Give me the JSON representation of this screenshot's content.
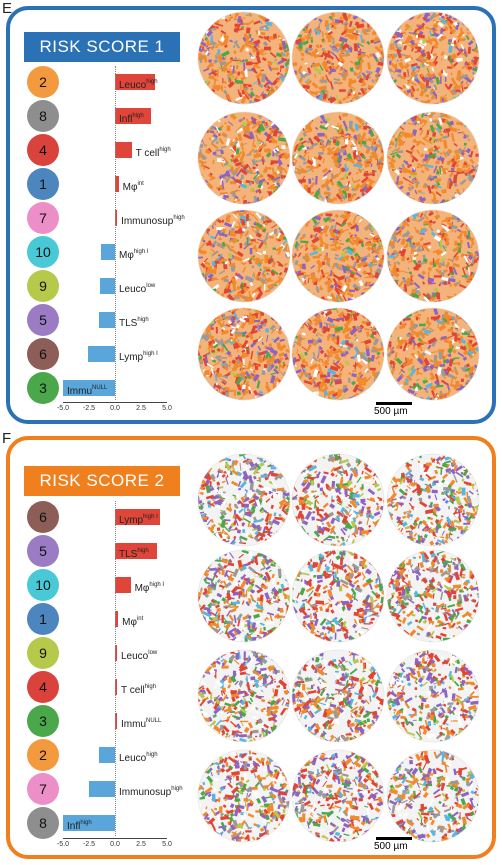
{
  "panels": [
    {
      "letter": "E",
      "title": "RISK SCORE 1",
      "border_color": "#2a72b5",
      "title_bg": "#2a72b5",
      "rows": [
        {
          "num": "2",
          "color": "#f39a3e",
          "value": 3.8,
          "base": "Leuco",
          "sup": "high"
        },
        {
          "num": "8",
          "color": "#8e8e8e",
          "value": 3.5,
          "base": "Infl",
          "sup": "high"
        },
        {
          "num": "4",
          "color": "#d9433b",
          "value": 1.6,
          "base": "T cell",
          "sup": "high"
        },
        {
          "num": "1",
          "color": "#4d85bf",
          "value": 0.35,
          "base": "Mφ",
          "sup": "int"
        },
        {
          "num": "7",
          "color": "#ec8fc9",
          "value": 0.2,
          "base": "Immunosup",
          "sup": "high"
        },
        {
          "num": "10",
          "color": "#49c9d6",
          "value": -1.3,
          "base": "Mφ",
          "sup": "high I"
        },
        {
          "num": "9",
          "color": "#b6c94a",
          "value": -1.4,
          "base": "Leuco",
          "sup": "low"
        },
        {
          "num": "5",
          "color": "#9b7cc4",
          "value": -1.5,
          "base": "TLS",
          "sup": "high"
        },
        {
          "num": "6",
          "color": "#8c5e57",
          "value": -2.6,
          "base": "Lymp",
          "sup": "high I"
        },
        {
          "num": "3",
          "color": "#4aa84a",
          "value": -5.0,
          "base": "Immu",
          "sup": "NULL"
        }
      ],
      "ticks": [
        "-5.0",
        "-2.5",
        "0.0",
        "2.5",
        "5.0"
      ],
      "scale_label": "500 µm"
    },
    {
      "letter": "F",
      "title": "RISK SCORE 2",
      "border_color": "#f07f1e",
      "title_bg": "#f07f1e",
      "rows": [
        {
          "num": "6",
          "color": "#8c5e57",
          "value": 4.3,
          "base": "Lymp",
          "sup": "high I"
        },
        {
          "num": "5",
          "color": "#9b7cc4",
          "value": 4.0,
          "base": "TLS",
          "sup": "high"
        },
        {
          "num": "10",
          "color": "#49c9d6",
          "value": 1.5,
          "base": "Mφ",
          "sup": "high I"
        },
        {
          "num": "1",
          "color": "#4d85bf",
          "value": 0.3,
          "base": "Mφ",
          "sup": "int"
        },
        {
          "num": "9",
          "color": "#b6c94a",
          "value": 0.1,
          "base": "Leuco",
          "sup": "low"
        },
        {
          "num": "4",
          "color": "#d9433b",
          "value": 0.1,
          "base": "T cell",
          "sup": "high"
        },
        {
          "num": "3",
          "color": "#4aa84a",
          "value": 0.05,
          "base": "Immu",
          "sup": "NULL"
        },
        {
          "num": "2",
          "color": "#f39a3e",
          "value": -1.5,
          "base": "Leuco",
          "sup": "high"
        },
        {
          "num": "7",
          "color": "#ec8fc9",
          "value": -2.5,
          "base": "Immunosup",
          "sup": "high"
        },
        {
          "num": "8",
          "color": "#8e8e8e",
          "value": -5.0,
          "base": "Infl",
          "sup": "high"
        }
      ],
      "ticks": [
        "-5.0",
        "-2.5",
        "0.0",
        "2.5",
        "5.0"
      ],
      "scale_label": "500 µm"
    }
  ],
  "colors": {
    "positive_bar": "#e0453a",
    "negative_bar": "#5aa6da"
  }
}
